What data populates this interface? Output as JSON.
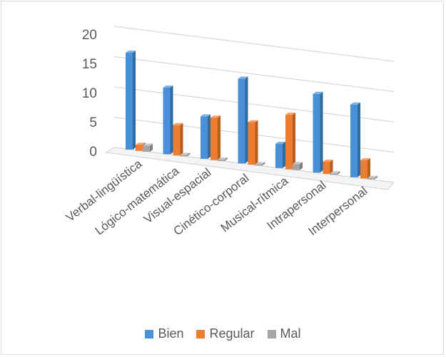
{
  "chart_data": {
    "type": "bar",
    "categories": [
      "Verbal-lingüística",
      "Lógico-matemática",
      "Visual-espacial",
      "Cinético-corporal",
      "Musical-rítmica",
      "Intrapersonal",
      "Interpersonal"
    ],
    "series": [
      {
        "name": "Bien",
        "values": [
          16,
          11,
          7,
          14,
          4,
          13,
          12
        ]
      },
      {
        "name": "Regular",
        "values": [
          1,
          5,
          7,
          7,
          9,
          2,
          3
        ]
      },
      {
        "name": "Mal",
        "values": [
          1,
          0,
          0,
          0,
          1,
          0,
          0
        ]
      }
    ],
    "yticks": [
      "0",
      "5",
      "10",
      "15",
      "20"
    ],
    "ylim": [
      0,
      20
    ],
    "grid": true,
    "legend_position": "bottom",
    "colors": [
      "#4a90d9",
      "#ed7d31",
      "#a5a5a5"
    ],
    "side_colors": [
      "#2e6da4",
      "#b85d1e",
      "#7f7f7f"
    ],
    "top_colors": [
      "#7fb3e8",
      "#f4a36c",
      "#c8c8c8"
    ]
  }
}
